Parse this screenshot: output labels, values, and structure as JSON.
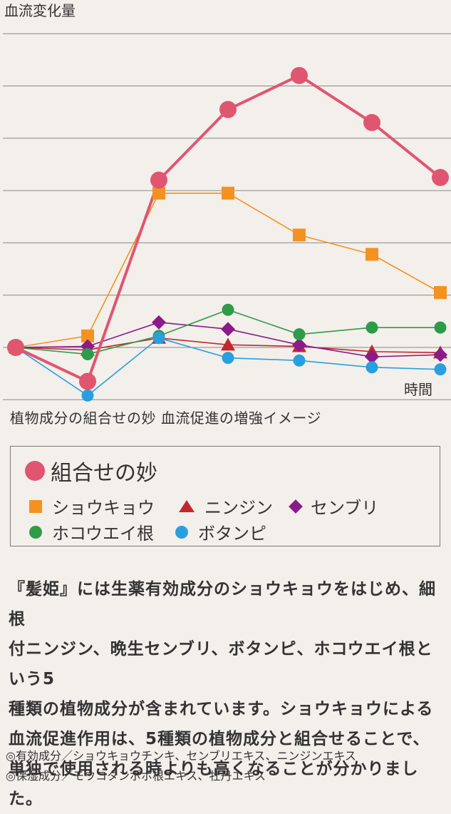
{
  "chart_data": {
    "type": "line",
    "ylabel": "血流変化量",
    "xlabel": "時間",
    "title": "植物成分の組合せの妙 血流促進の増強イメージ",
    "x": [
      0,
      1,
      2,
      3,
      4,
      5,
      6
    ],
    "ylim": [
      -1,
      6
    ],
    "yticks": [
      -1,
      0,
      1,
      2,
      3,
      4,
      5,
      6
    ],
    "grid": true,
    "legend": "bottom",
    "series": [
      {
        "name": "組合せの妙",
        "color": "#e05570",
        "marker": "circle",
        "values": [
          0,
          -0.65,
          3.2,
          4.55,
          5.2,
          4.3,
          3.25
        ]
      },
      {
        "name": "ショウキョウ",
        "color": "#f39220",
        "marker": "square",
        "values": [
          0,
          0.22,
          2.95,
          2.95,
          2.15,
          1.78,
          1.05
        ]
      },
      {
        "name": "ニンジン",
        "color": "#c1272d",
        "marker": "triangle",
        "values": [
          0,
          -0.05,
          0.18,
          0.05,
          0.02,
          -0.08,
          -0.1
        ]
      },
      {
        "name": "センブリ",
        "color": "#8b1a8b",
        "marker": "diamond",
        "values": [
          0,
          0.02,
          0.48,
          0.35,
          0.05,
          -0.18,
          -0.14
        ]
      },
      {
        "name": "ホコウエイ根",
        "color": "#2e9b48",
        "marker": "circle",
        "values": [
          0,
          -0.13,
          0.22,
          0.72,
          0.25,
          0.38,
          0.38
        ]
      },
      {
        "name": "ボタンピ",
        "color": "#2a9fe0",
        "marker": "circle",
        "values": [
          0,
          -0.92,
          0.18,
          -0.2,
          -0.25,
          -0.38,
          -0.42
        ]
      }
    ]
  },
  "legend": {
    "main": "組合せの妙",
    "row1": [
      "ショウキョウ",
      "ニンジン",
      "センブリ"
    ],
    "row2": [
      "ホコウエイ根",
      "ボタンピ"
    ]
  },
  "body": [
    "『髪姫』には生薬有効成分のショウキョウをはじめ、細根",
    "付ニンジン、晩生センブリ、ボタンピ、ホコウエイ根という5",
    "種類の植物成分が含まれています。ショウキョウによる",
    "血流促進作用は、5種類の植物成分と組合せることで、",
    "単独で使用される時よりも高くなることが分かりました。"
  ],
  "notes": [
    "◎有効成分／ショウキョウチンキ、センブリエキス、ニンジンエキス",
    "◎保湿成分／モウコタンポポ根エキス、牡丹エキス"
  ]
}
